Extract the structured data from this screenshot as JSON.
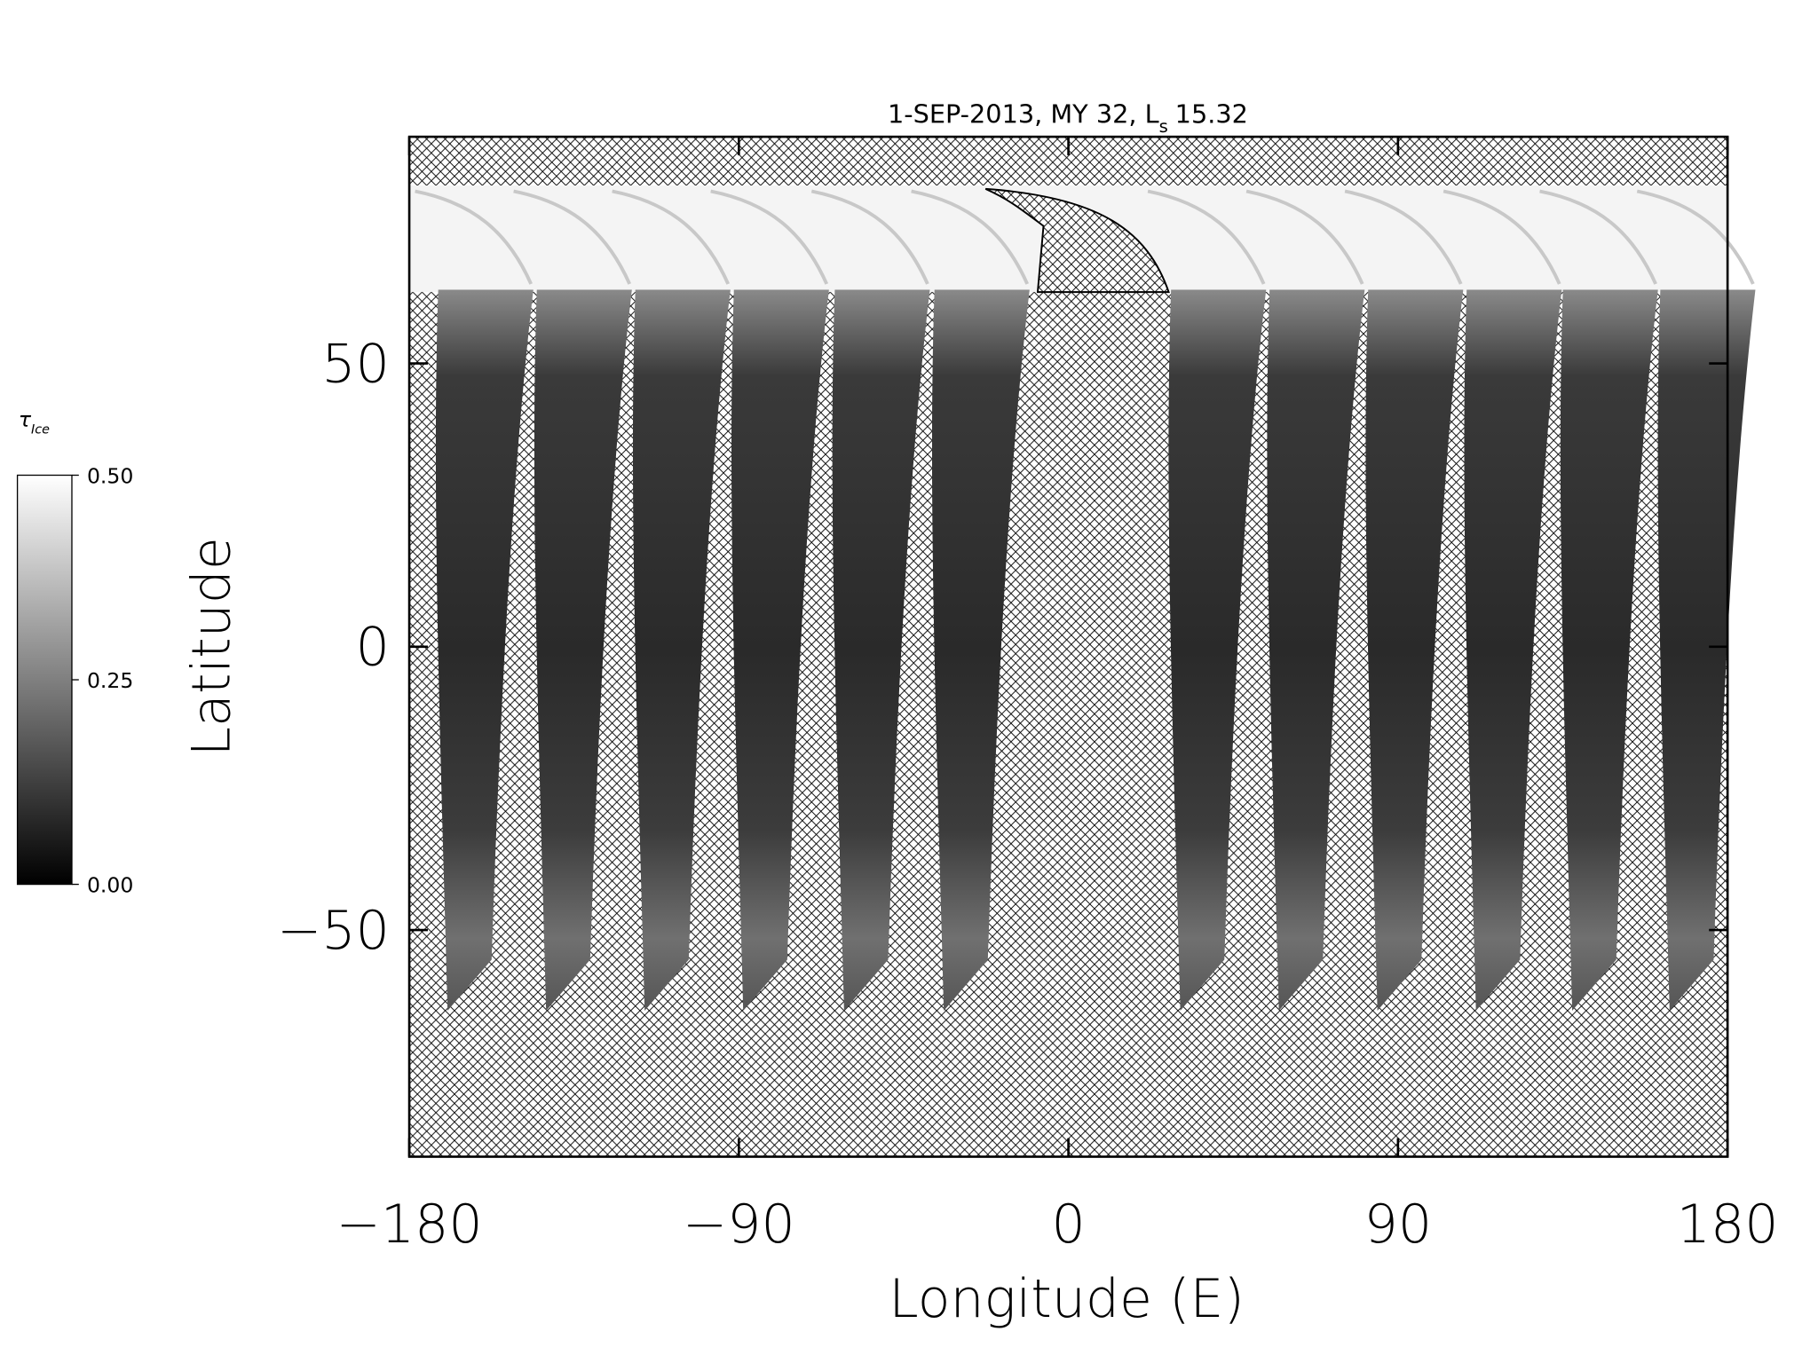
{
  "chart_data": {
    "type": "map",
    "title": "1-SEP-2013, MY 32,  L",
    "title_subscript": "s",
    "title_value": "15.32",
    "x_label": "Longitude (E)",
    "y_label": "Latitude",
    "xlim": [
      -180,
      180
    ],
    "ylim": [
      -90,
      90
    ],
    "xticks": [
      {
        "value": -180,
        "label": "−180"
      },
      {
        "value": -90,
        "label": "−90"
      },
      0,
      90,
      180
    ],
    "yticks": [
      {
        "value": -50,
        "label": "−50"
      },
      0,
      50
    ],
    "colorbar_label": "τ",
    "colorbar_label_subscript": "Ice",
    "colorbar_lim": [
      0,
      0.5
    ],
    "colorbar_ticks": [
      {
        "value": 0,
        "label": "0.00"
      },
      {
        "value": 0.25,
        "label": "0.25"
      },
      {
        "value": 0.5,
        "label": "0.50"
      }
    ]
  }
}
